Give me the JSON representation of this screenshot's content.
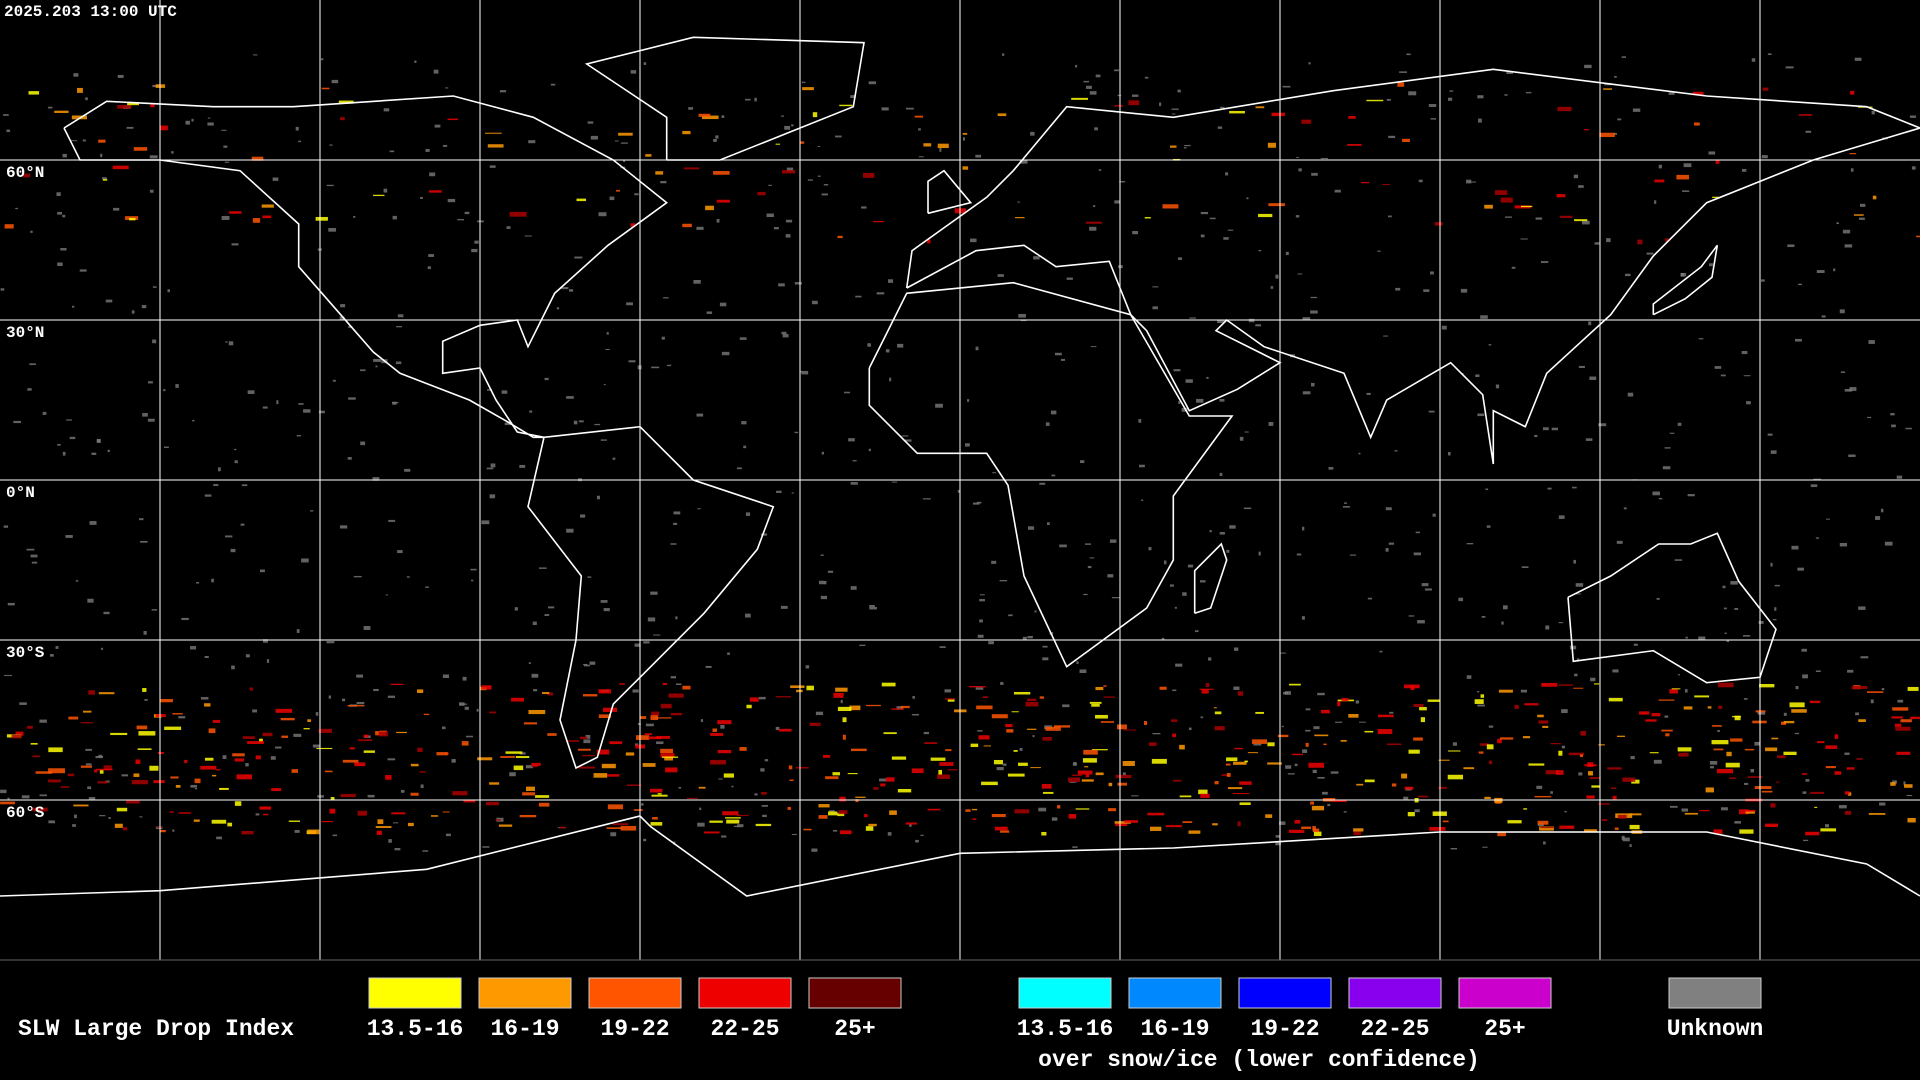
{
  "header": {
    "timestamp": "2025.203 13:00 UTC"
  },
  "map": {
    "lat_labels": [
      "60°N",
      "30°N",
      "0°N",
      "30°S",
      "60°S"
    ]
  },
  "legend": {
    "title": "SLW Large Drop Index",
    "liquid": [
      {
        "label": "13.5-16",
        "color": "#ffff00"
      },
      {
        "label": "16-19",
        "color": "#ff9900"
      },
      {
        "label": "19-22",
        "color": "#ff5500"
      },
      {
        "label": "22-25",
        "color": "#ee0000"
      },
      {
        "label": "25+",
        "color": "#660000"
      }
    ],
    "snow_ice": [
      {
        "label": "13.5-16",
        "color": "#00ffff"
      },
      {
        "label": "16-19",
        "color": "#0088ff"
      },
      {
        "label": "19-22",
        "color": "#0000ff"
      },
      {
        "label": "22-25",
        "color": "#8800ee"
      },
      {
        "label": "25+",
        "color": "#cc00cc"
      }
    ],
    "snow_ice_note": "over snow/ice (lower confidence)",
    "unknown": {
      "label": "Unknown",
      "color": "#808080"
    }
  }
}
